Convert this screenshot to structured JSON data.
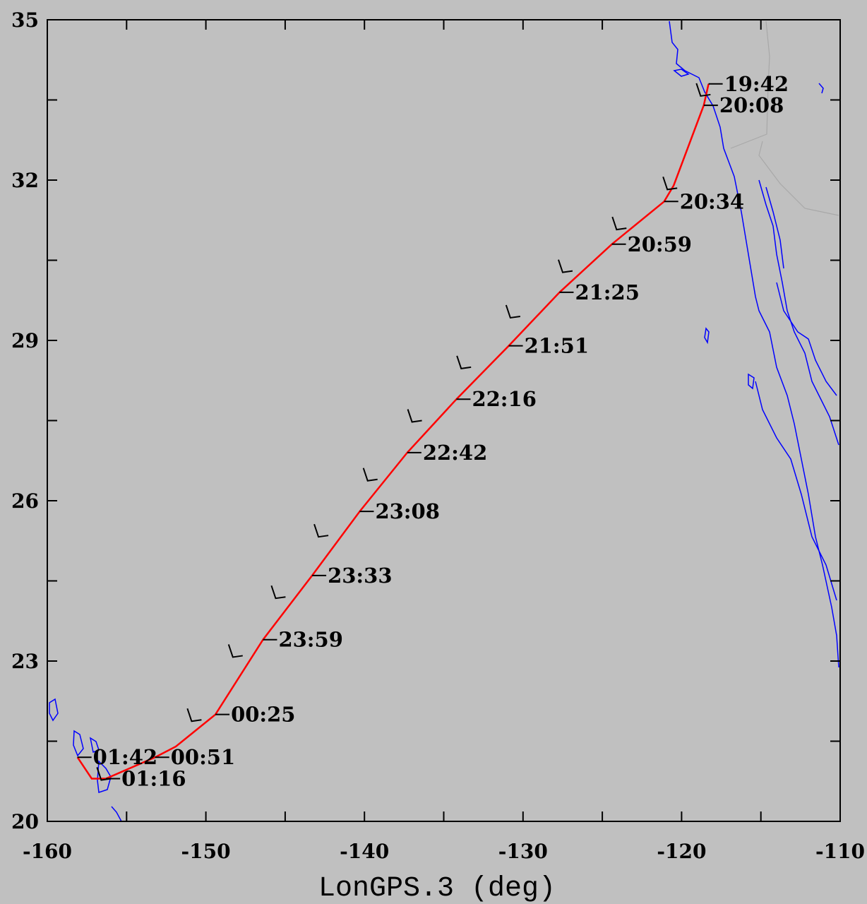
{
  "chart_data": {
    "type": "line",
    "xlabel": "LonGPS.3 (deg)",
    "ylabel": "",
    "title": "",
    "xlim": [
      -160,
      -110
    ],
    "ylim": [
      20,
      35
    ],
    "x_ticks": [
      -160,
      -150,
      -140,
      -130,
      -120,
      -110
    ],
    "y_ticks": [
      20,
      23,
      26,
      29,
      32,
      35
    ],
    "x_tick_labels": [
      "-160",
      "-150",
      "-140",
      "-130",
      "-120",
      "-110"
    ],
    "y_tick_labels": [
      "20",
      "23",
      "26",
      "29",
      "32",
      "35"
    ],
    "grid": false,
    "colors": {
      "track": "#ff0000",
      "coast": "#0000ff",
      "border": "#a8a8a8",
      "markers": "#000000",
      "frame": "#000000"
    },
    "track": {
      "name": "",
      "points": [
        {
          "x": -118.3,
          "y": 33.8,
          "label": "19:42"
        },
        {
          "x": -118.6,
          "y": 33.4,
          "label": "20:08"
        },
        {
          "x": -120.5,
          "y": 31.9
        },
        {
          "x": -121.1,
          "y": 31.6,
          "label": "20:34"
        },
        {
          "x": -124.4,
          "y": 30.8,
          "label": "20:59"
        },
        {
          "x": -127.7,
          "y": 29.9,
          "label": "21:25"
        },
        {
          "x": -130.9,
          "y": 28.9,
          "label": "21:51"
        },
        {
          "x": -134.2,
          "y": 27.9,
          "label": "22:16"
        },
        {
          "x": -137.3,
          "y": 26.9,
          "label": "22:42"
        },
        {
          "x": -140.3,
          "y": 25.8,
          "label": "23:08"
        },
        {
          "x": -143.3,
          "y": 24.6,
          "label": "23:33"
        },
        {
          "x": -146.4,
          "y": 23.4,
          "label": "23:59"
        },
        {
          "x": -149.4,
          "y": 22.0,
          "label": "00:25"
        },
        {
          "x": -151.9,
          "y": 21.4
        },
        {
          "x": -153.2,
          "y": 21.2,
          "label": "00:51"
        },
        {
          "x": -156.3,
          "y": 20.8,
          "label": "01:16"
        },
        {
          "x": -157.2,
          "y": 20.8
        },
        {
          "x": -158.1,
          "y": 21.2,
          "label": "01:42"
        }
      ]
    },
    "marker_positions": [
      {
        "x": -120.9,
        "y": 31.85
      },
      {
        "x": -124.1,
        "y": 31.1
      },
      {
        "x": -127.5,
        "y": 30.3
      },
      {
        "x": -130.8,
        "y": 29.45
      },
      {
        "x": -133.9,
        "y": 28.5
      },
      {
        "x": -137.0,
        "y": 27.5
      },
      {
        "x": -139.8,
        "y": 26.4
      },
      {
        "x": -142.9,
        "y": 25.35
      },
      {
        "x": -145.6,
        "y": 24.2
      },
      {
        "x": -148.3,
        "y": 23.1
      },
      {
        "x": -150.9,
        "y": 21.9
      },
      {
        "x": -118.8,
        "y": 33.6
      },
      {
        "x": -156.6,
        "y": 20.8
      }
    ]
  }
}
